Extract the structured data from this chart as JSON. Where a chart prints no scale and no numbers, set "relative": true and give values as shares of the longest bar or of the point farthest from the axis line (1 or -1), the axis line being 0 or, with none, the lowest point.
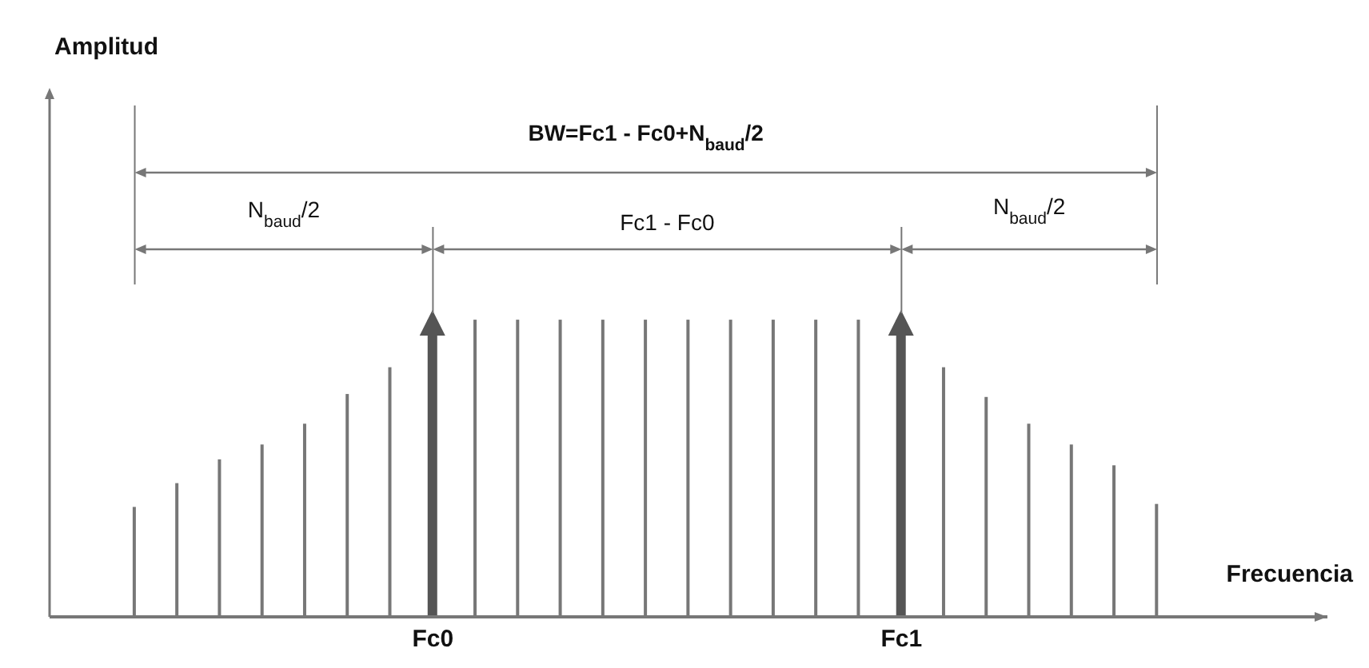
{
  "chart_data": {
    "type": "bar",
    "relative": true,
    "stacked": true,
    "xlabel": "Frecuencia",
    "categories": [
      null,
      null,
      null,
      null,
      null,
      null,
      null,
      "Fc0",
      null,
      null,
      null,
      null,
      null,
      null,
      null,
      null,
      null,
      null,
      "Fc1",
      null,
      null,
      null,
      null,
      null,
      null
    ],
    "series": [
      {
        "color": "#777777",
        "values": [
          0.37,
          0.45,
          0.53,
          0.58,
          0.65,
          0.75,
          0.84,
          null,
          1,
          1,
          1,
          1,
          1,
          1,
          1,
          1,
          1,
          1,
          null,
          0.84,
          0.74,
          0.65,
          0.58,
          0.51,
          0.38
        ]
      },
      {
        "color": "#555555",
        "values": [
          null,
          null,
          null,
          null,
          null,
          null,
          null,
          1,
          null,
          null,
          null,
          null,
          null,
          null,
          null,
          null,
          null,
          null,
          1,
          null,
          null,
          null,
          null,
          null,
          null
        ]
      }
    ],
    "annotations": [
      "Amplitud",
      "BW=Fc1 - Fc0+N$_{baud}$/2",
      "N$_{baud}$/2",
      "Fc1 - Fc0",
      "N$_{baud}$/2"
    ]
  }
}
